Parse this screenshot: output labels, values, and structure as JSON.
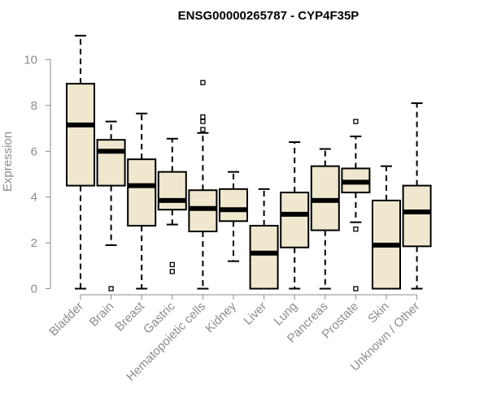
{
  "chart_data": {
    "type": "box",
    "title": "ENSG00000265787 - CYP4F35P",
    "xlabel": "",
    "ylabel": "Expression",
    "ylim": [
      0,
      11
    ],
    "yticks": [
      0,
      2,
      4,
      6,
      8,
      10
    ],
    "grid": false,
    "legend": "none",
    "box_fill": "#efe8cf",
    "categories": [
      "Bladder",
      "Brain",
      "Breast",
      "Gastric",
      "Hematopoietic cells",
      "Kidney",
      "Liver",
      "Lung",
      "Pancreas",
      "Prostate",
      "Skin",
      "Unknown / Other"
    ],
    "series": [
      {
        "category": "Bladder",
        "whisker_low": 0,
        "q1": 4.5,
        "median": 7.15,
        "q3": 8.95,
        "whisker_high": 11.05,
        "outliers": []
      },
      {
        "category": "Brain",
        "whisker_low": 1.9,
        "q1": 4.5,
        "median": 6.0,
        "q3": 6.5,
        "whisker_high": 7.3,
        "outliers": [
          0
        ]
      },
      {
        "category": "Breast",
        "whisker_low": 0,
        "q1": 2.75,
        "median": 4.5,
        "q3": 5.65,
        "whisker_high": 7.65,
        "outliers": []
      },
      {
        "category": "Gastric",
        "whisker_low": 2.8,
        "q1": 3.45,
        "median": 3.85,
        "q3": 5.1,
        "whisker_high": 6.55,
        "outliers": [
          1.05,
          0.75
        ]
      },
      {
        "category": "Hematopoietic cells",
        "whisker_low": 0,
        "q1": 2.5,
        "median": 3.5,
        "q3": 4.3,
        "whisker_high": 6.8,
        "outliers": [
          9.0,
          7.5,
          7.3,
          6.95
        ]
      },
      {
        "category": "Kidney",
        "whisker_low": 1.2,
        "q1": 2.95,
        "median": 3.45,
        "q3": 4.35,
        "whisker_high": 5.1,
        "outliers": []
      },
      {
        "category": "Liver",
        "whisker_low": 0,
        "q1": 0,
        "median": 1.55,
        "q3": 2.75,
        "whisker_high": 4.35,
        "outliers": []
      },
      {
        "category": "Lung",
        "whisker_low": 0,
        "q1": 1.8,
        "median": 3.25,
        "q3": 4.2,
        "whisker_high": 6.4,
        "outliers": []
      },
      {
        "category": "Pancreas",
        "whisker_low": 0,
        "q1": 2.55,
        "median": 3.85,
        "q3": 5.35,
        "whisker_high": 6.1,
        "outliers": []
      },
      {
        "category": "Prostate",
        "whisker_low": 2.9,
        "q1": 4.2,
        "median": 4.65,
        "q3": 5.25,
        "whisker_high": 6.65,
        "outliers": [
          7.3,
          2.6,
          0
        ]
      },
      {
        "category": "Skin",
        "whisker_low": 0,
        "q1": 0,
        "median": 1.9,
        "q3": 3.85,
        "whisker_high": 5.35,
        "outliers": []
      },
      {
        "category": "Unknown / Other",
        "whisker_low": 0,
        "q1": 1.85,
        "median": 3.35,
        "q3": 4.5,
        "whisker_high": 8.1,
        "outliers": []
      }
    ]
  }
}
